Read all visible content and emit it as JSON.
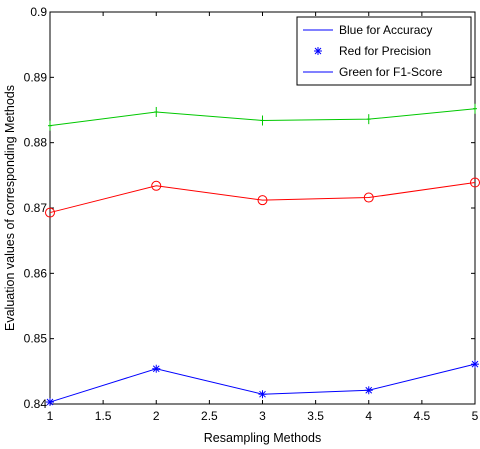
{
  "chart_data": {
    "type": "line",
    "xlabel": "Resampling Methods",
    "ylabel": "Evaluation values of corresponding Methods",
    "xlim": [
      1,
      5
    ],
    "ylim": [
      0.84,
      0.9
    ],
    "xticks": [
      1,
      1.5,
      2,
      2.5,
      3,
      3.5,
      4,
      4.5,
      5
    ],
    "xtick_labels": [
      "1",
      "1.5",
      "2",
      "2.5",
      "3",
      "3.5",
      "4",
      "4.5",
      "5"
    ],
    "yticks": [
      0.84,
      0.85,
      0.86,
      0.87,
      0.88,
      0.89,
      0.9
    ],
    "ytick_labels": [
      "0.84",
      "0.85",
      "0.86",
      "0.87",
      "0.88",
      "0.89",
      "0.9"
    ],
    "grid": false,
    "legend_position": "top-right",
    "x": [
      1,
      2,
      3,
      4,
      5
    ],
    "series": [
      {
        "name": "Blue for Accuracy",
        "values": [
          0.8403,
          0.8454,
          0.8415,
          0.8421,
          0.8461
        ],
        "color": "#0000ff",
        "marker": "asterisk"
      },
      {
        "name": "Red for Precision",
        "values": [
          0.8693,
          0.8734,
          0.8712,
          0.8716,
          0.8739
        ],
        "color": "#ff0000",
        "marker": "circle"
      },
      {
        "name": "Green for F1-Score",
        "values": [
          0.8826,
          0.8847,
          0.8834,
          0.8836,
          0.8852
        ],
        "color": "#00c800",
        "marker": "plus"
      }
    ],
    "legend_entries": [
      {
        "label": "Blue for Accuracy",
        "color": "#0000ff",
        "marker": "none"
      },
      {
        "label": "Red for Precision",
        "color": "#0000ff",
        "marker": "asterisk"
      },
      {
        "label": "Green for F1-Score",
        "color": "#0000ff",
        "marker": "none"
      }
    ]
  }
}
